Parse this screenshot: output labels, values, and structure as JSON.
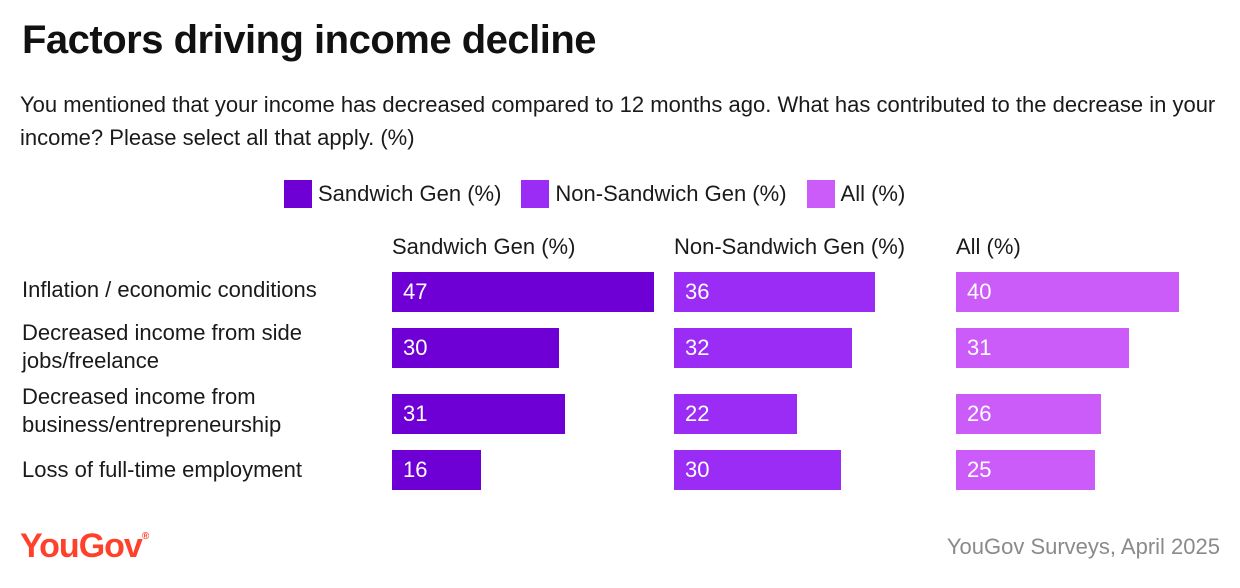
{
  "header": {
    "title": "Factors driving income decline",
    "subtitle": "You mentioned that your income has decreased compared to 12 months ago. What has contributed to the decrease in your income? Please select all that apply. (%)"
  },
  "footer": {
    "brand": "YouGov",
    "brand_mark": "®",
    "source": "YouGov Surveys, April 2025"
  },
  "chart_data": {
    "type": "bar",
    "orientation": "horizontal",
    "layout": "small-multiples",
    "legend_placement": "top",
    "grid": false,
    "categories": [
      "Inflation / economic conditions",
      "Decreased income from side jobs/freelance",
      "Decreased income from business/entrepreneurship",
      "Loss of full-time employment"
    ],
    "series": [
      {
        "name": "Sandwich Gen (%)",
        "color": "#6e00d6",
        "values": [
          47,
          30,
          31,
          16
        ]
      },
      {
        "name": "Non-Sandwich Gen (%)",
        "color": "#9a2cf5",
        "values": [
          36,
          32,
          22,
          30
        ]
      },
      {
        "name": "All (%)",
        "color": "#cc5cfa",
        "values": [
          40,
          31,
          26,
          25
        ]
      }
    ],
    "xlim": [
      0,
      47
    ]
  }
}
